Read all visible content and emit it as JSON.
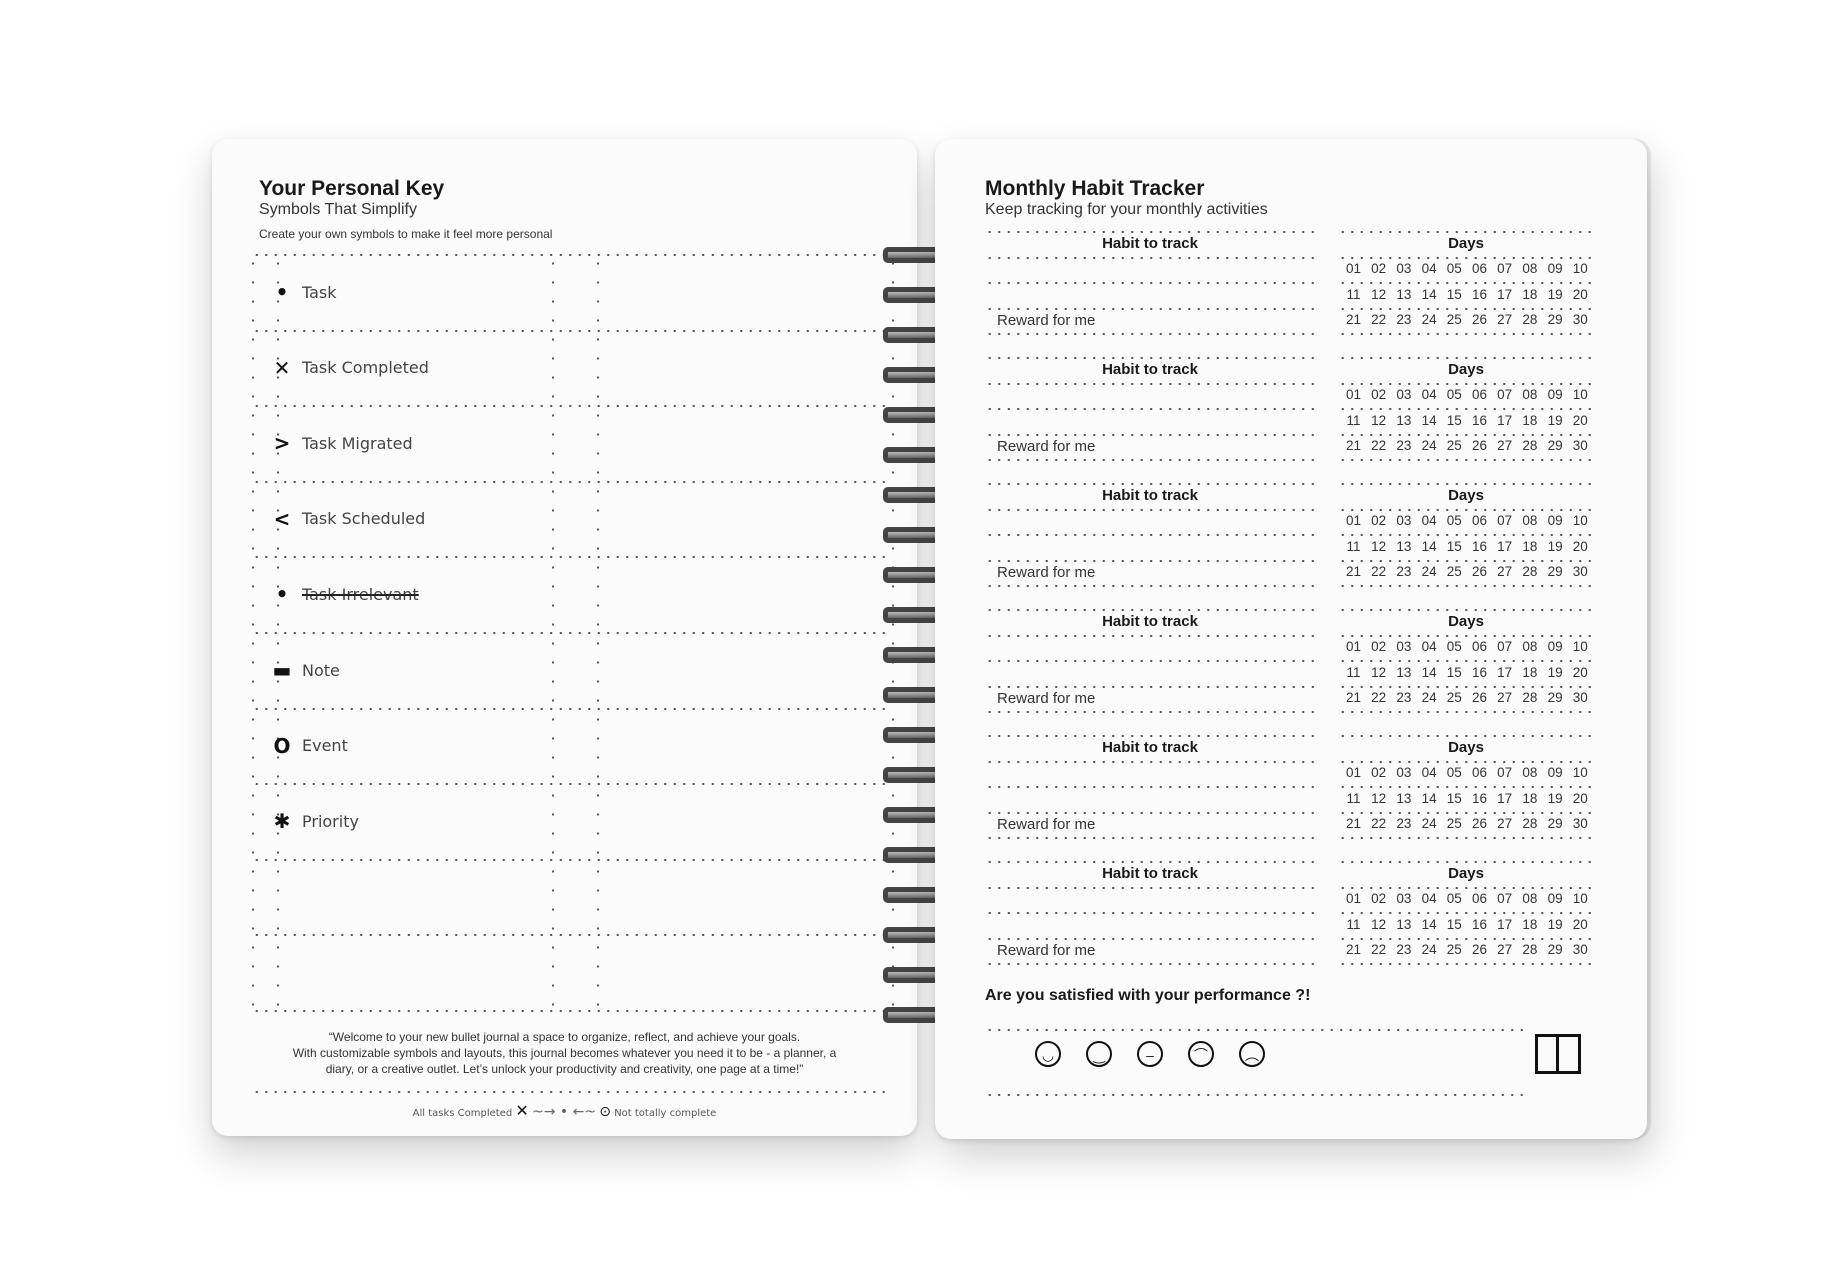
{
  "left_page": {
    "title": "Your Personal Key",
    "subtitle": "Symbols That Simplify",
    "instruction": "Create your own symbols to make it feel more personal",
    "key_items": [
      {
        "icon": "dot-icon",
        "symbol": "•",
        "label": "Task"
      },
      {
        "icon": "x-icon",
        "symbol": "✕",
        "label": "Task Completed"
      },
      {
        "icon": "greater-than-icon",
        "symbol": ">",
        "label": "Task Migrated"
      },
      {
        "icon": "less-than-icon",
        "symbol": "<",
        "label": "Task Scheduled"
      },
      {
        "icon": "strikethrough-dot-icon",
        "symbol": "•",
        "label": "Task Irrelevant"
      },
      {
        "icon": "dash-icon",
        "symbol": "▬",
        "label": "Note"
      },
      {
        "icon": "circle-icon",
        "symbol": "O",
        "label": "Event"
      },
      {
        "icon": "asterisk-icon",
        "symbol": "✱",
        "label": "Priority"
      }
    ],
    "quote_line1": "“Welcome to your new bullet journal a space to organize, reflect, and achieve your goals.",
    "quote_line2": "With customizable symbols and layouts, this journal becomes whatever you need it to be - a planner, a",
    "quote_line3": "diary, or a creative outlet. Let’s unlock your productivity and creativity, one page at a time!”",
    "legend_left": "All tasks Completed",
    "legend_right": "Not totally complete"
  },
  "right_page": {
    "title": "Monthly Habit Tracker",
    "subtitle": "Keep tracking for your monthly activities",
    "blocks": [
      {
        "habit_header": "Habit to track",
        "days_header": "Days",
        "reward": "Reward for me"
      },
      {
        "habit_header": "Habit to track",
        "days_header": "Days",
        "reward": "Reward for me"
      },
      {
        "habit_header": "Habit to track",
        "days_header": "Days",
        "reward": "Reward for me"
      },
      {
        "habit_header": "Habit to track",
        "days_header": "Days",
        "reward": "Reward for me"
      },
      {
        "habit_header": "Habit to track",
        "days_header": "Days",
        "reward": "Reward for me"
      },
      {
        "habit_header": "Habit to track",
        "days_header": "Days",
        "reward": "Reward for me"
      }
    ],
    "days": [
      [
        "01",
        "02",
        "03",
        "04",
        "05",
        "06",
        "07",
        "08",
        "09",
        "10"
      ],
      [
        "11",
        "12",
        "13",
        "14",
        "15",
        "16",
        "17",
        "18",
        "19",
        "20"
      ],
      [
        "21",
        "22",
        "23",
        "24",
        "25",
        "26",
        "27",
        "28",
        "29",
        "30"
      ]
    ],
    "question": "Are you satisfied with your performance ?!",
    "faces": [
      {
        "icon": "very-happy-face-icon",
        "glyph": "◡"
      },
      {
        "icon": "happy-face-icon",
        "glyph": "‿"
      },
      {
        "icon": "neutral-face-icon",
        "glyph": "–"
      },
      {
        "icon": "sad-face-icon",
        "glyph": "⌒"
      },
      {
        "icon": "very-sad-face-icon",
        "glyph": "︵"
      }
    ],
    "book_icon": "open-book-icon"
  }
}
